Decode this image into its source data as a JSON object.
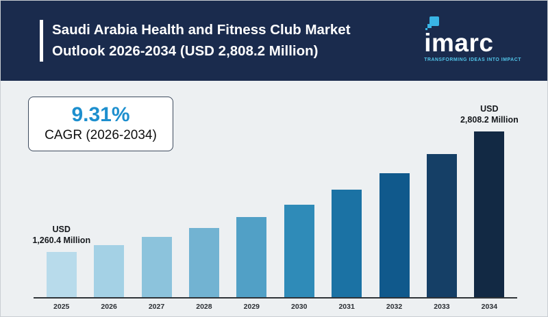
{
  "header": {
    "title_line1": "Saudi Arabia Health and Fitness Club Market",
    "title_line2": "Outlook 2026-2034 (USD 2,808.2 Million)",
    "logo": {
      "wordmark": "imarc",
      "tagline": "TRANSFORMING IDEAS INTO IMPACT"
    }
  },
  "cagr_box": {
    "value": "9.31%",
    "label": "CAGR (2026-2034)"
  },
  "annotations": {
    "first_bar": {
      "line1": "USD",
      "line2": "1,260.4 Million"
    },
    "last_bar": {
      "line1": "USD",
      "line2": "2,808.2 Million"
    }
  },
  "colors": {
    "header_bg": "#1a2b4d",
    "body_bg": "#edf0f2",
    "accent_blue": "#1d8fce",
    "logo_teal": "#39b5e6",
    "axis_line": "#2e3338"
  },
  "chart_data": {
    "type": "bar",
    "title": "Saudi Arabia Health and Fitness Club Market Outlook 2026-2034 (USD 2,808.2 Million)",
    "xlabel": "",
    "ylabel": "",
    "ylim": [
      0,
      2808.2
    ],
    "grid": false,
    "legend": false,
    "categories": [
      "2025",
      "2026",
      "2027",
      "2028",
      "2029",
      "2030",
      "2031",
      "2032",
      "2033",
      "2034"
    ],
    "values": [
      1260.4,
      1377.7,
      1506.0,
      1646.2,
      1799.4,
      1966.9,
      2150.0,
      2350.2,
      2568.9,
      2808.2
    ],
    "labeled_points": {
      "2025": "USD 1,260.4 Million",
      "2034": "USD 2,808.2 Million"
    },
    "bar_colors": [
      "#b8dbeb",
      "#a4d1e5",
      "#8cc3dc",
      "#72b3d2",
      "#51a0c6",
      "#2f8bb8",
      "#1b72a4",
      "#10598c",
      "#153f66",
      "#122944"
    ]
  }
}
